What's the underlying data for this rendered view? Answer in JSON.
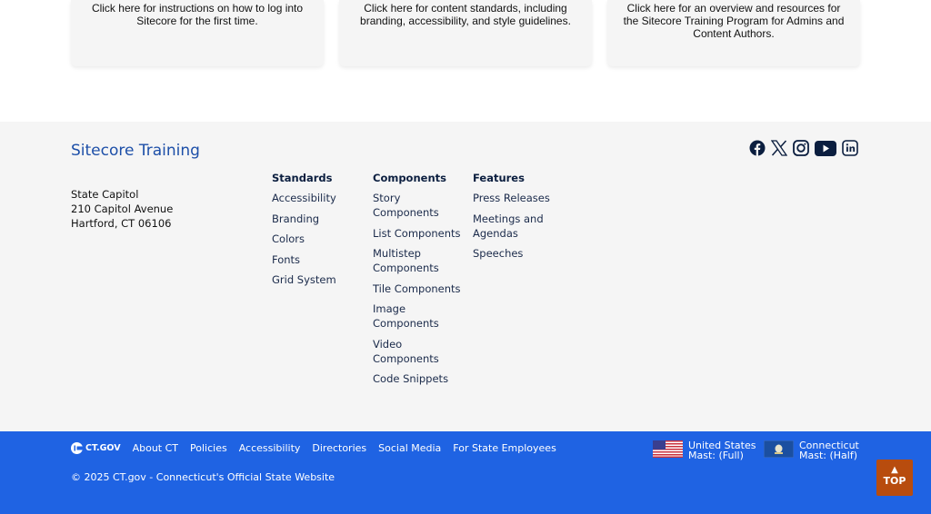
{
  "cards": [
    "Click here for instructions on how to log into Sitecore for the first time.",
    "Click here for content standards, including branding, accessibility, and style guidelines.",
    "Click here for an overview and resources for the Sitecore Training Program for Admins and Content Authors."
  ],
  "footer": {
    "title": "Sitecore Training",
    "address": [
      "State Capitol",
      "210 Capitol Avenue",
      "Hartford, CT 06106"
    ],
    "columns": [
      {
        "heading": "Standards",
        "items": [
          "Accessibility",
          "Branding",
          "Colors",
          "Fonts",
          "Grid System"
        ]
      },
      {
        "heading": "Components",
        "items": [
          "Story Components",
          "List Components",
          "Multistep Components",
          "Tile Components",
          "Image Components",
          "Video Components",
          "Code Snippets"
        ]
      },
      {
        "heading": "Features",
        "items": [
          "Press Releases",
          "Meetings and Agendas",
          "Speeches"
        ]
      }
    ],
    "social": [
      "facebook-icon",
      "x-icon",
      "instagram-icon",
      "youtube-icon",
      "linkedin-icon"
    ]
  },
  "bar": {
    "logo": "CT.GOV",
    "links": [
      "About CT",
      "Policies",
      "Accessibility",
      "Directories",
      "Social Media",
      "For State Employees"
    ],
    "copyright": "© 2025 CT.gov - Connecticut's Official State Website",
    "us_mast": {
      "line1": "United States",
      "line2": "Mast: (Full)"
    },
    "ct_mast": {
      "line1": "Connecticut",
      "line2": "Mast: (Half)"
    },
    "top": "TOP"
  },
  "colors": {
    "bar": "#1f63e3",
    "title": "#1d4fa8",
    "top": "#b84c0e"
  }
}
